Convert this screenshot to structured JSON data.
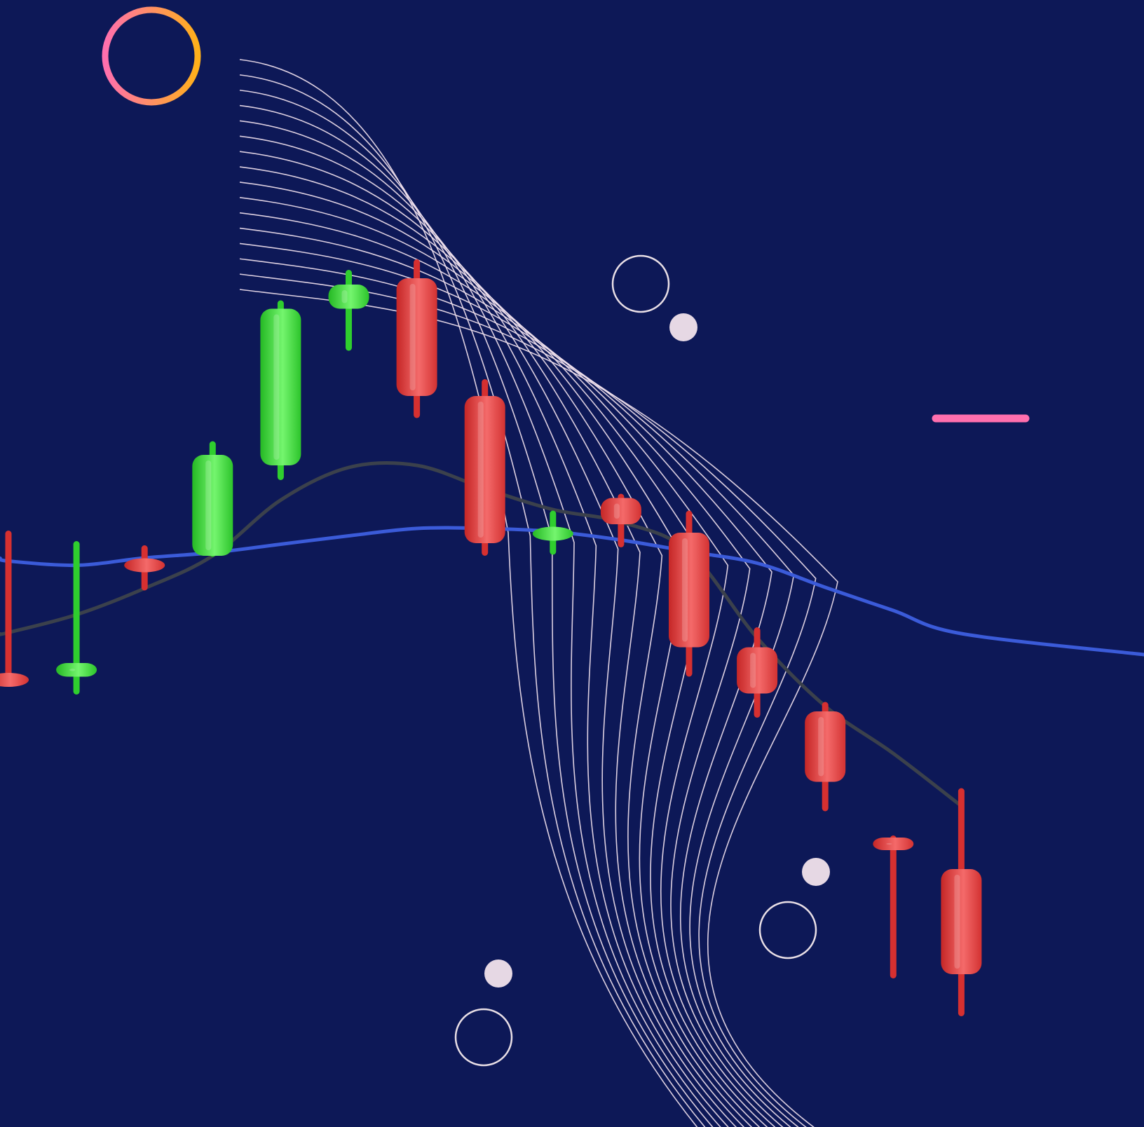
{
  "chart_data": {
    "type": "candlestick",
    "title": "",
    "xlabel": "",
    "ylabel": "",
    "axes_shown": false,
    "grid": false,
    "legend": "none",
    "ylim": [
      0,
      100
    ],
    "candles": [
      {
        "open": 40.0,
        "close": 40.0,
        "high": 54.2,
        "low": 39.6,
        "direction": "down",
        "color": "#e23b3b"
      },
      {
        "open": 40.3,
        "close": 41.6,
        "high": 53.2,
        "low": 38.6,
        "direction": "up",
        "color": "#39e23a"
      },
      {
        "open": 50.9,
        "close": 50.9,
        "high": 52.8,
        "low": 48.5,
        "direction": "down",
        "color": "#e23b3b"
      },
      {
        "open": 51.8,
        "close": 61.4,
        "high": 62.7,
        "low": 51.7,
        "direction": "up",
        "color": "#39e23a"
      },
      {
        "open": 60.4,
        "close": 75.3,
        "high": 76.1,
        "low": 59.0,
        "direction": "up",
        "color": "#39e23a"
      },
      {
        "open": 75.3,
        "close": 77.6,
        "high": 79.0,
        "low": 71.3,
        "direction": "up",
        "color": "#39e23a"
      },
      {
        "open": 78.2,
        "close": 67.0,
        "high": 80.0,
        "low": 64.9,
        "direction": "down",
        "color": "#e23b3b"
      },
      {
        "open": 67.0,
        "close": 53.0,
        "high": 68.6,
        "low": 51.8,
        "direction": "down",
        "color": "#e23b3b"
      },
      {
        "open": 53.9,
        "close": 53.9,
        "high": 56.1,
        "low": 51.9,
        "direction": "up",
        "color": "#39e23a"
      },
      {
        "open": 57.3,
        "close": 54.8,
        "high": 57.7,
        "low": 52.6,
        "direction": "down",
        "color": "#e23b3b"
      },
      {
        "open": 54.0,
        "close": 43.1,
        "high": 56.1,
        "low": 40.3,
        "direction": "down",
        "color": "#e23b3b"
      },
      {
        "open": 43.1,
        "close": 38.7,
        "high": 45.0,
        "low": 36.4,
        "direction": "down",
        "color": "#e23b3b"
      },
      {
        "open": 37.0,
        "close": 30.3,
        "high": 37.9,
        "low": 27.5,
        "direction": "down",
        "color": "#e23b3b"
      },
      {
        "open": 25.0,
        "close": 23.8,
        "high": 25.2,
        "low": 11.6,
        "direction": "down",
        "color": "#e23b3b"
      },
      {
        "open": 22.0,
        "close": 12.0,
        "high": 29.7,
        "low": 8.0,
        "direction": "down",
        "color": "#e23b3b"
      }
    ],
    "series": [
      {
        "style": "line",
        "color": "#3b5bd9",
        "values": [
          51.3,
          50.9,
          51.6,
          52.1,
          52.9,
          53.7,
          54.4,
          54.4,
          54.1,
          53.3,
          52.2,
          51.1,
          48.8,
          46.6,
          44.4
        ]
      },
      {
        "style": "line",
        "color": "#3b414c",
        "values": [
          44.5,
          46.2,
          48.7,
          51.8,
          57.1,
          60.2,
          60.4,
          58.2,
          56.2,
          55.0,
          52.2,
          44.0,
          37.5,
          33.0,
          28.0
        ]
      }
    ]
  },
  "decor": {
    "gradient_ring": {
      "color_from": "#ff6fae",
      "color_to": "#ffb01a"
    },
    "gradient_plus": {
      "color_from": "#ffb01a",
      "color_to": "#ff5fa8"
    },
    "light_dot_color": "#e6d8e4",
    "outline_ring_color": "#e9dfe6",
    "wave_line_color": "#f3e3ef",
    "wave_line_count": 16
  }
}
